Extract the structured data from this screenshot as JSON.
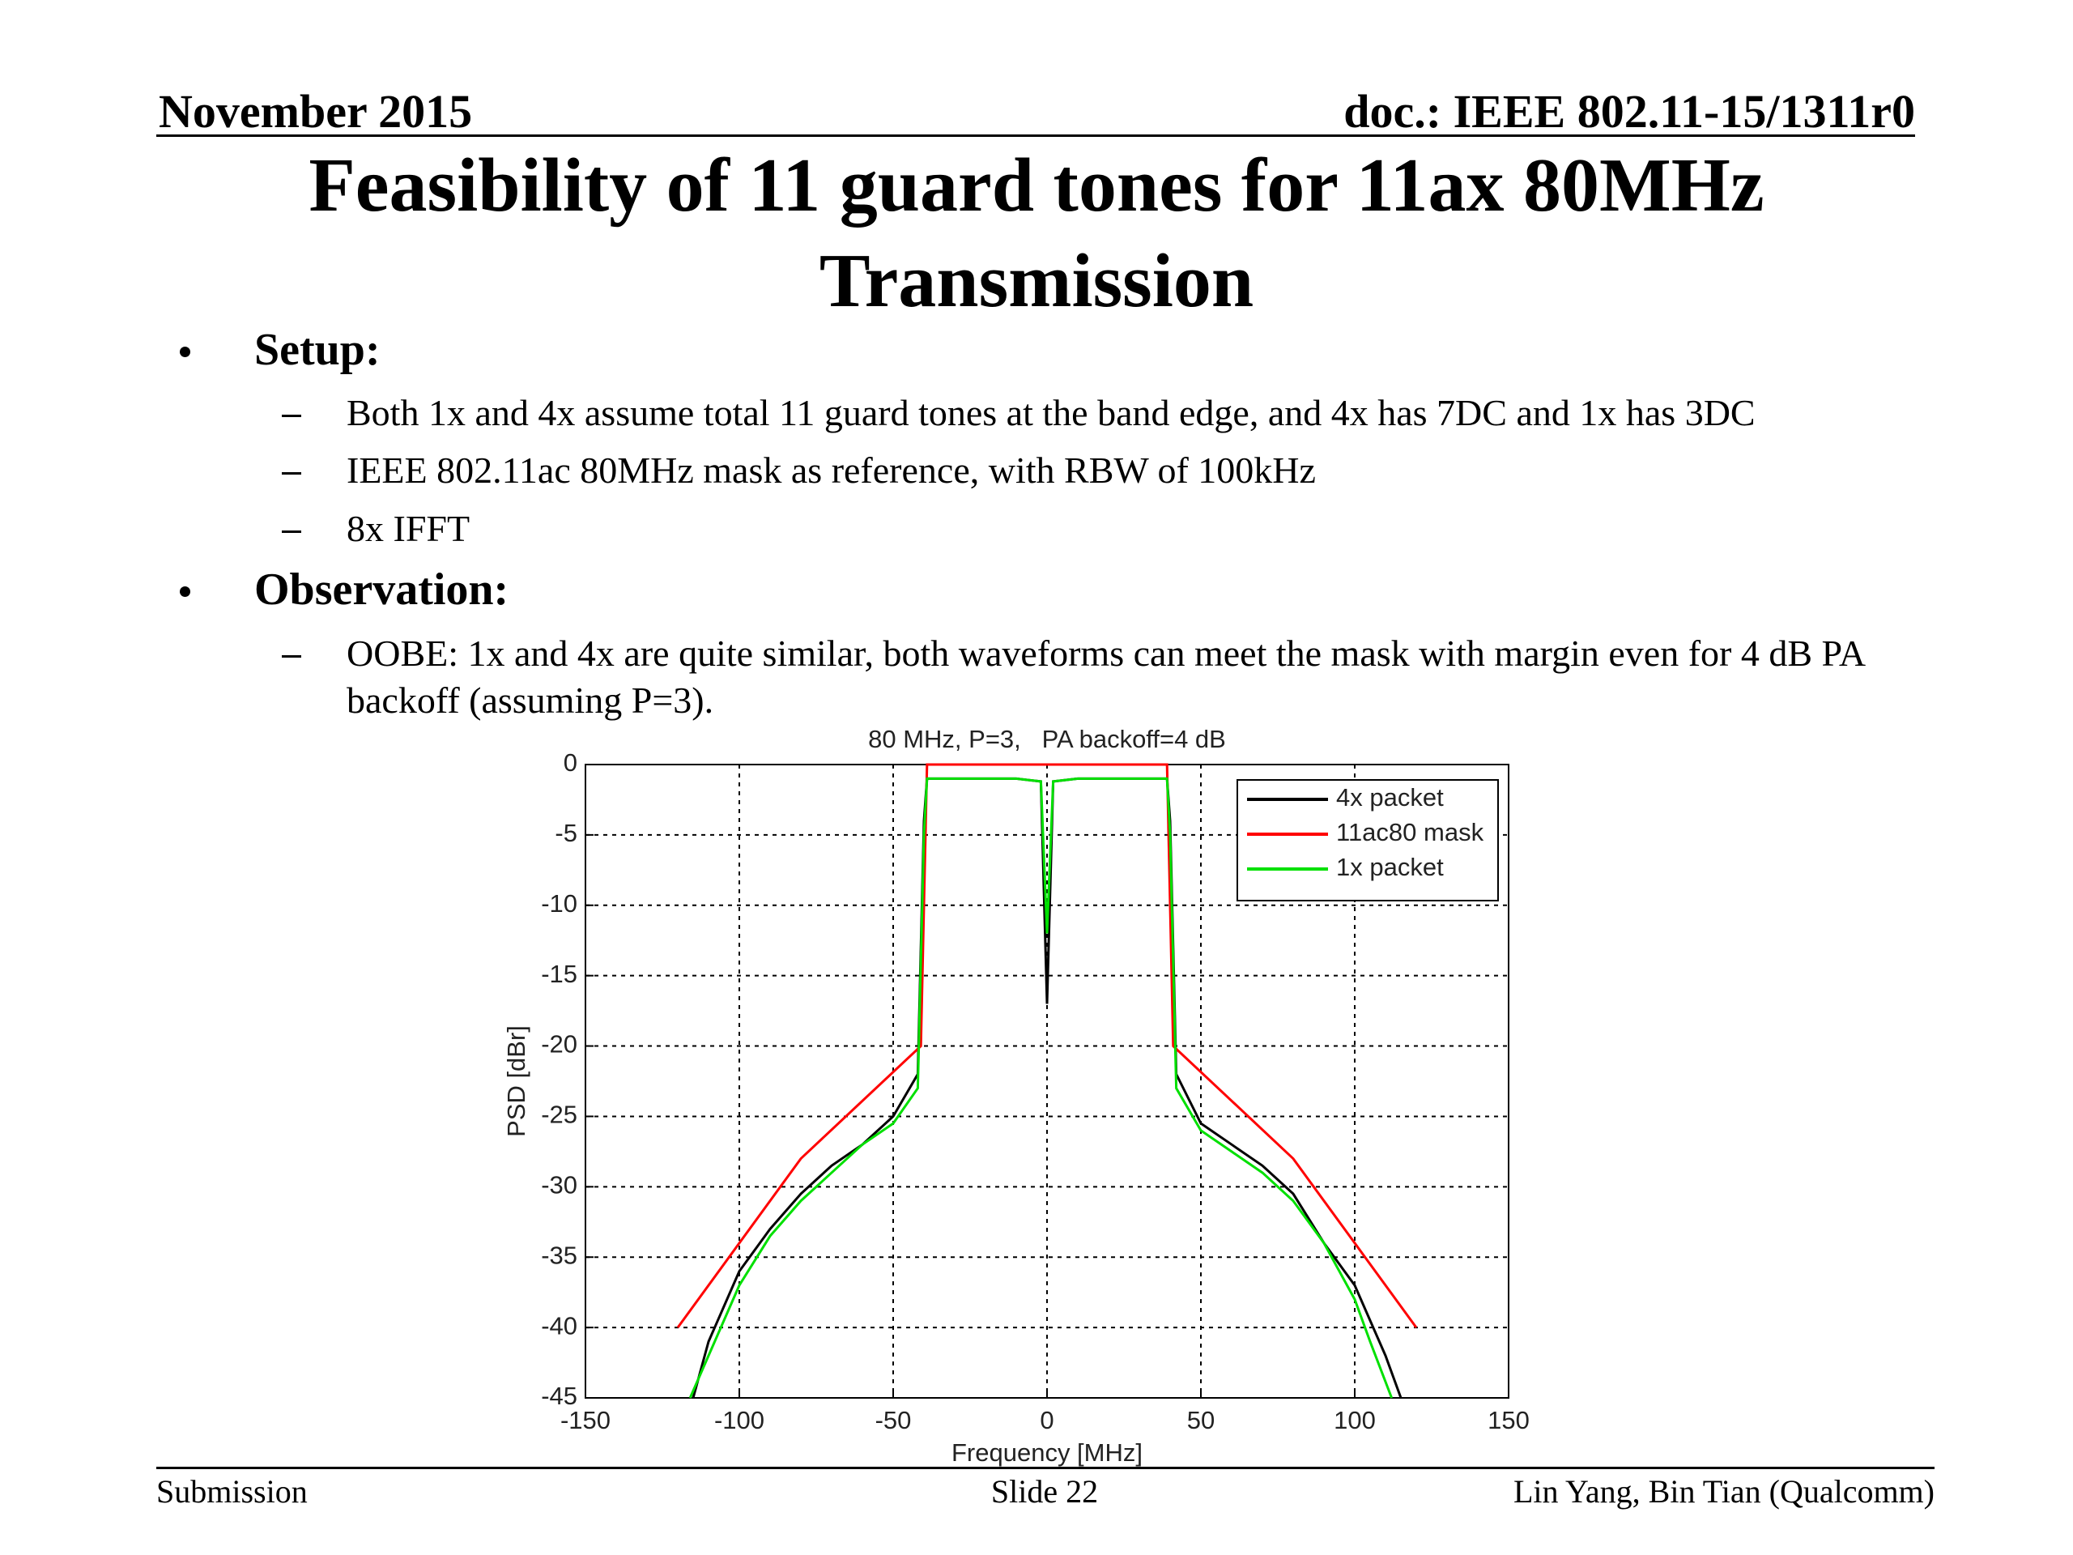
{
  "header": {
    "date": "November 2015",
    "doc": "doc.: IEEE 802.11-15/1311r0"
  },
  "title": "Feasibility of 11 guard tones for 11ax 80MHz Transmission",
  "bullets": [
    {
      "text": "Setup:",
      "sub": [
        "Both 1x and 4x assume total 11 guard tones at the band edge, and 4x has 7DC and 1x has 3DC",
        "IEEE 802.11ac 80MHz mask as reference, with RBW of 100kHz",
        "8x IFFT"
      ]
    },
    {
      "text": "Observation:",
      "sub": [
        "OOBE: 1x and 4x are quite similar, both waveforms can meet the mask with margin even for 4 dB PA backoff (assuming P=3)."
      ]
    }
  ],
  "chart_data": {
    "type": "line",
    "title": "80 MHz, P=3,   PA backoff=4 dB",
    "x_label": "Frequency [MHz]",
    "y_label": "PSD [dBr]",
    "xlim": [
      -150,
      150
    ],
    "ylim": [
      -45,
      0
    ],
    "xticks": [
      -150,
      -100,
      -50,
      0,
      50,
      100,
      150
    ],
    "yticks": [
      0,
      -5,
      -10,
      -15,
      -20,
      -25,
      -30,
      -35,
      -40,
      -45
    ],
    "grid": true,
    "legend": "upper right",
    "series": [
      {
        "name": "4x packet",
        "color": "#000000",
        "x": [
          -115,
          -110,
          -100,
          -90,
          -80,
          -70,
          -60,
          -50,
          -42,
          -40,
          -39,
          -30,
          -20,
          -10,
          -2,
          0,
          2,
          10,
          20,
          30,
          39,
          40,
          42,
          50,
          60,
          70,
          80,
          90,
          100,
          110,
          115
        ],
        "values": [
          -45,
          -41,
          -36,
          -33,
          -30.5,
          -28.5,
          -27,
          -25,
          -22,
          -4,
          -1,
          -1,
          -1,
          -1,
          -1.2,
          -17,
          -1.2,
          -1,
          -1,
          -1,
          -1,
          -4,
          -22,
          -25.5,
          -27,
          -28.5,
          -30.5,
          -34,
          -37,
          -42,
          -45
        ]
      },
      {
        "name": "11ac80 mask",
        "color": "#ff0000",
        "x": [
          -120,
          -80,
          -41,
          -39,
          39,
          41,
          80,
          120
        ],
        "values": [
          -40,
          -28,
          -20,
          0,
          0,
          -20,
          -28,
          -40
        ]
      },
      {
        "name": "1x packet",
        "color": "#00e000",
        "x": [
          -116,
          -110,
          -100,
          -90,
          -80,
          -70,
          -60,
          -50,
          -42,
          -40,
          -39,
          -30,
          -20,
          -10,
          -2,
          0,
          2,
          10,
          20,
          30,
          39,
          40,
          42,
          50,
          60,
          70,
          80,
          90,
          100,
          105,
          112
        ],
        "values": [
          -45,
          -42,
          -37,
          -33.5,
          -31,
          -29,
          -27,
          -25.5,
          -23,
          -5,
          -1,
          -1,
          -1,
          -1,
          -1.2,
          -12,
          -1.2,
          -1,
          -1,
          -1,
          -1,
          -5,
          -23,
          -26,
          -27.5,
          -29,
          -31,
          -34,
          -38,
          -41,
          -45
        ]
      }
    ]
  },
  "footer": {
    "left": "Submission",
    "center": "Slide 22",
    "right": "Lin Yang, Bin Tian (Qualcomm)"
  }
}
